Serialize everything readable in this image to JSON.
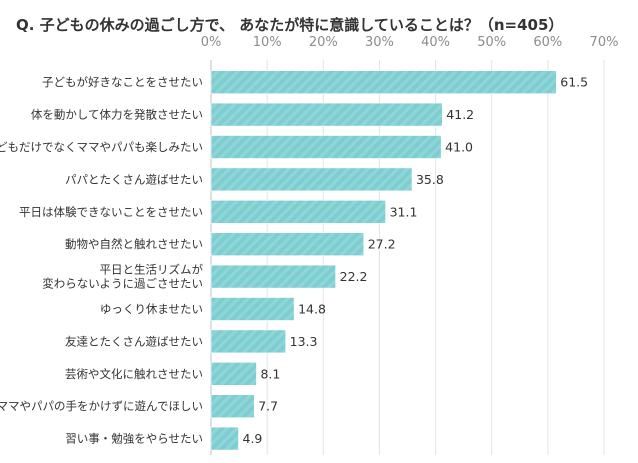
{
  "chart_data": {
    "type": "bar",
    "orientation": "horizontal",
    "title": "Q. 子どもの休みの過ごし方で、 あなたが特に意識していることは？（n=405）",
    "xlabel": "",
    "ylabel": "",
    "xlim": [
      0,
      70
    ],
    "tick_values": [
      0,
      10,
      20,
      30,
      40,
      50,
      60,
      70
    ],
    "tick_labels": [
      "0%",
      "10%",
      "20%",
      "30%",
      "40%",
      "50%",
      "60%",
      "70%"
    ],
    "grid": true,
    "bar_color": "#7ecdd0",
    "categories": [
      [
        "子どもが好きなことをさせたい"
      ],
      [
        "体を動かして体力を発散させたい"
      ],
      [
        "子どもだけでなくママやパパも楽しみたい"
      ],
      [
        "パパとたくさん遊ばせたい"
      ],
      [
        "平日は体験できないことをさせたい"
      ],
      [
        "動物や自然と触れさせたい"
      ],
      [
        "平日と生活リズムが",
        "変わらないように過ごさせたい"
      ],
      [
        "ゆっくり休ませたい"
      ],
      [
        "友達とたくさん遊ばせたい"
      ],
      [
        "芸術や文化に触れさせたい"
      ],
      [
        "ママやパパの手をかけずに遊んでほしい"
      ],
      [
        "習い事・勉強をやらせたい"
      ]
    ],
    "values": [
      61.5,
      41.2,
      41.0,
      35.8,
      31.1,
      27.2,
      22.2,
      14.8,
      13.3,
      8.1,
      7.7,
      4.9
    ],
    "value_labels": [
      "61.5",
      "41.2",
      "41.0",
      "35.8",
      "31.1",
      "27.2",
      "22.2",
      "14.8",
      "13.3",
      "8.1",
      "7.7",
      "4.9"
    ]
  }
}
